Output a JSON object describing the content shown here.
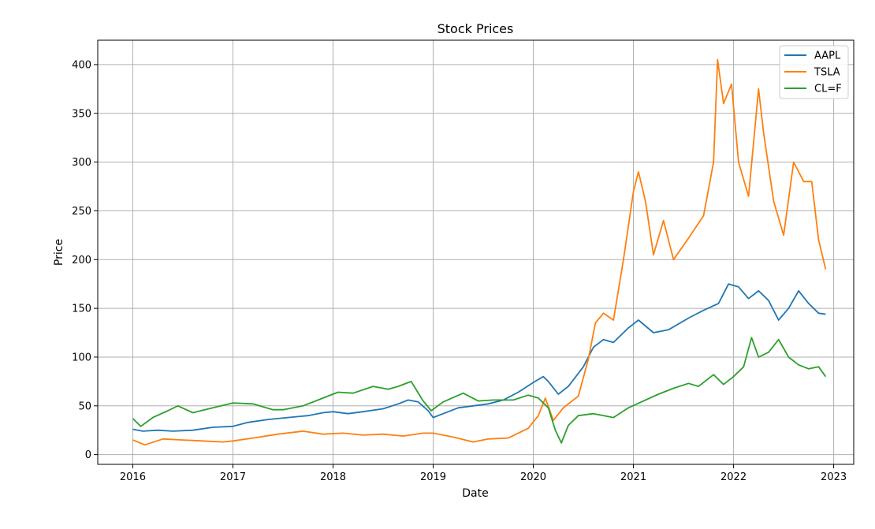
{
  "chart_data": {
    "type": "line",
    "title": "Stock Prices",
    "xlabel": "Date",
    "ylabel": "Price",
    "xlim": [
      2015.65,
      2023.2
    ],
    "ylim": [
      -10,
      425
    ],
    "grid": true,
    "legend_position": "top-right",
    "x_ticks": [
      2016,
      2017,
      2018,
      2019,
      2020,
      2021,
      2022,
      2023
    ],
    "x_tick_labels": [
      "2016",
      "2017",
      "2018",
      "2019",
      "2020",
      "2021",
      "2022",
      "2023"
    ],
    "y_ticks": [
      0,
      50,
      100,
      150,
      200,
      250,
      300,
      350,
      400
    ],
    "y_tick_labels": [
      "0",
      "50",
      "100",
      "150",
      "200",
      "250",
      "300",
      "350",
      "400"
    ],
    "series": [
      {
        "name": "AAPL",
        "color": "#1f77b4",
        "points": [
          [
            2016.0,
            26
          ],
          [
            2016.1,
            24
          ],
          [
            2016.25,
            25
          ],
          [
            2016.4,
            24
          ],
          [
            2016.6,
            25
          ],
          [
            2016.8,
            28
          ],
          [
            2017.0,
            29
          ],
          [
            2017.15,
            33
          ],
          [
            2017.35,
            36
          ],
          [
            2017.55,
            38
          ],
          [
            2017.75,
            40
          ],
          [
            2017.9,
            43
          ],
          [
            2018.0,
            44
          ],
          [
            2018.15,
            42
          ],
          [
            2018.3,
            44
          ],
          [
            2018.5,
            47
          ],
          [
            2018.65,
            52
          ],
          [
            2018.75,
            56
          ],
          [
            2018.85,
            54
          ],
          [
            2018.95,
            45
          ],
          [
            2019.0,
            38
          ],
          [
            2019.1,
            42
          ],
          [
            2019.25,
            48
          ],
          [
            2019.4,
            50
          ],
          [
            2019.55,
            52
          ],
          [
            2019.7,
            56
          ],
          [
            2019.85,
            64
          ],
          [
            2020.0,
            74
          ],
          [
            2020.1,
            80
          ],
          [
            2020.15,
            75
          ],
          [
            2020.25,
            62
          ],
          [
            2020.35,
            70
          ],
          [
            2020.5,
            90
          ],
          [
            2020.6,
            110
          ],
          [
            2020.7,
            118
          ],
          [
            2020.8,
            115
          ],
          [
            2020.95,
            130
          ],
          [
            2021.05,
            138
          ],
          [
            2021.2,
            125
          ],
          [
            2021.35,
            128
          ],
          [
            2021.55,
            140
          ],
          [
            2021.7,
            148
          ],
          [
            2021.85,
            155
          ],
          [
            2021.95,
            175
          ],
          [
            2022.05,
            172
          ],
          [
            2022.15,
            160
          ],
          [
            2022.25,
            168
          ],
          [
            2022.35,
            158
          ],
          [
            2022.45,
            138
          ],
          [
            2022.55,
            150
          ],
          [
            2022.65,
            168
          ],
          [
            2022.75,
            155
          ],
          [
            2022.85,
            145
          ],
          [
            2022.92,
            144
          ]
        ]
      },
      {
        "name": "TSLA",
        "color": "#ff7f0e",
        "points": [
          [
            2016.0,
            15
          ],
          [
            2016.12,
            10
          ],
          [
            2016.3,
            16
          ],
          [
            2016.5,
            15
          ],
          [
            2016.7,
            14
          ],
          [
            2016.9,
            13
          ],
          [
            2017.0,
            14
          ],
          [
            2017.2,
            17
          ],
          [
            2017.45,
            21
          ],
          [
            2017.7,
            24
          ],
          [
            2017.9,
            21
          ],
          [
            2018.1,
            22
          ],
          [
            2018.3,
            20
          ],
          [
            2018.5,
            21
          ],
          [
            2018.7,
            19
          ],
          [
            2018.9,
            22
          ],
          [
            2019.0,
            22
          ],
          [
            2019.2,
            18
          ],
          [
            2019.4,
            13
          ],
          [
            2019.55,
            16
          ],
          [
            2019.75,
            17
          ],
          [
            2019.95,
            27
          ],
          [
            2020.05,
            40
          ],
          [
            2020.12,
            58
          ],
          [
            2020.2,
            35
          ],
          [
            2020.3,
            48
          ],
          [
            2020.45,
            60
          ],
          [
            2020.55,
            98
          ],
          [
            2020.62,
            135
          ],
          [
            2020.7,
            145
          ],
          [
            2020.8,
            138
          ],
          [
            2020.9,
            200
          ],
          [
            2021.0,
            270
          ],
          [
            2021.05,
            290
          ],
          [
            2021.12,
            260
          ],
          [
            2021.2,
            205
          ],
          [
            2021.3,
            240
          ],
          [
            2021.4,
            200
          ],
          [
            2021.55,
            222
          ],
          [
            2021.7,
            245
          ],
          [
            2021.8,
            300
          ],
          [
            2021.84,
            405
          ],
          [
            2021.9,
            360
          ],
          [
            2021.98,
            380
          ],
          [
            2022.05,
            300
          ],
          [
            2022.15,
            265
          ],
          [
            2022.25,
            375
          ],
          [
            2022.3,
            330
          ],
          [
            2022.4,
            260
          ],
          [
            2022.5,
            225
          ],
          [
            2022.6,
            300
          ],
          [
            2022.7,
            280
          ],
          [
            2022.78,
            280
          ],
          [
            2022.85,
            220
          ],
          [
            2022.92,
            190
          ]
        ]
      },
      {
        "name": "CL=F",
        "color": "#2ca02c",
        "points": [
          [
            2016.0,
            37
          ],
          [
            2016.08,
            29
          ],
          [
            2016.2,
            38
          ],
          [
            2016.35,
            45
          ],
          [
            2016.45,
            50
          ],
          [
            2016.6,
            43
          ],
          [
            2016.8,
            48
          ],
          [
            2017.0,
            53
          ],
          [
            2017.2,
            52
          ],
          [
            2017.4,
            46
          ],
          [
            2017.5,
            46
          ],
          [
            2017.7,
            50
          ],
          [
            2017.9,
            58
          ],
          [
            2018.05,
            64
          ],
          [
            2018.2,
            63
          ],
          [
            2018.4,
            70
          ],
          [
            2018.55,
            67
          ],
          [
            2018.65,
            70
          ],
          [
            2018.78,
            75
          ],
          [
            2018.9,
            55
          ],
          [
            2018.98,
            45
          ],
          [
            2019.1,
            54
          ],
          [
            2019.3,
            63
          ],
          [
            2019.45,
            55
          ],
          [
            2019.6,
            56
          ],
          [
            2019.8,
            56
          ],
          [
            2019.95,
            61
          ],
          [
            2020.05,
            58
          ],
          [
            2020.15,
            48
          ],
          [
            2020.22,
            25
          ],
          [
            2020.28,
            12
          ],
          [
            2020.35,
            30
          ],
          [
            2020.45,
            40
          ],
          [
            2020.6,
            42
          ],
          [
            2020.8,
            38
          ],
          [
            2020.95,
            48
          ],
          [
            2021.1,
            55
          ],
          [
            2021.25,
            62
          ],
          [
            2021.4,
            68
          ],
          [
            2021.55,
            73
          ],
          [
            2021.65,
            70
          ],
          [
            2021.8,
            82
          ],
          [
            2021.9,
            72
          ],
          [
            2022.0,
            80
          ],
          [
            2022.1,
            90
          ],
          [
            2022.18,
            120
          ],
          [
            2022.25,
            100
          ],
          [
            2022.35,
            105
          ],
          [
            2022.45,
            118
          ],
          [
            2022.55,
            100
          ],
          [
            2022.65,
            92
          ],
          [
            2022.75,
            88
          ],
          [
            2022.85,
            90
          ],
          [
            2022.92,
            80
          ]
        ]
      }
    ]
  }
}
